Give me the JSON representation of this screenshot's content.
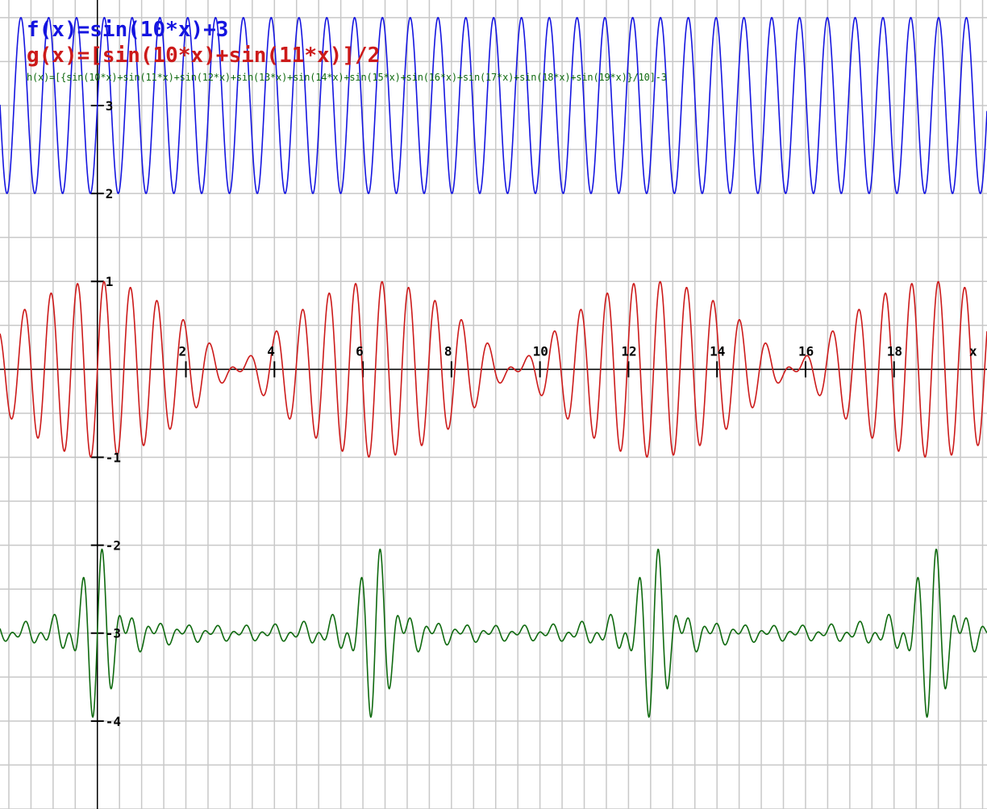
{
  "chart_data": {
    "type": "line",
    "xlim": [
      -2.2,
      20.1
    ],
    "ylim": [
      -5.0,
      4.2
    ],
    "grid": true,
    "axis_label_x": "x",
    "x_ticks": [
      2,
      4,
      6,
      8,
      10,
      12,
      14,
      16,
      18
    ],
    "x_tick_labels": [
      "2",
      "4",
      "6",
      "8",
      "10",
      "12",
      "14",
      "16",
      "18"
    ],
    "y_ticks": [
      3,
      2,
      1,
      -1,
      -2,
      -3,
      -4
    ],
    "y_tick_labels": [
      "3",
      "2",
      "1",
      "-1",
      "-2",
      "-3",
      "-4"
    ],
    "series": [
      {
        "name": "f(x)=sin(10*x)+3",
        "color": "#1515e0",
        "formula": "sin(10*x)+3",
        "offset": 3,
        "freqs": [
          10
        ]
      },
      {
        "name": "g(x)=[sin(10*x)+sin(11*x)]/2",
        "color": "#cc1a1a",
        "formula": "[sin(10*x)+sin(11*x)]/2",
        "offset": 0,
        "freqs": [
          10,
          11
        ]
      },
      {
        "name": "h(x)=[{sin(10*x)+sin(11*x)+sin(12*x)+sin(13*x)+sin(14*x)+sin(15*x)+sin(16*x)+sin(17*x)+sin(18*x)+sin(19*x)}/10]-3",
        "color": "#0f6a0f",
        "formula": "[{sin(10*x)+...+sin(19*x)}/10]-3",
        "offset": -3,
        "freqs": [
          10,
          11,
          12,
          13,
          14,
          15,
          16,
          17,
          18,
          19
        ]
      }
    ]
  }
}
